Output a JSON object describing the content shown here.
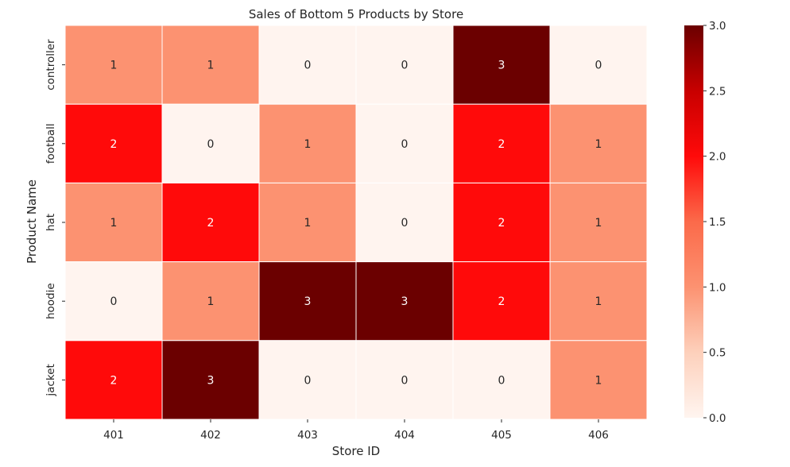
{
  "chart_data": {
    "type": "heatmap",
    "title": "Sales of Bottom 5 Products by Store",
    "xlabel": "Store ID",
    "ylabel": "Product Name",
    "x_categories": [
      "401",
      "402",
      "403",
      "404",
      "405",
      "406"
    ],
    "y_categories": [
      "controller",
      "football",
      "hat",
      "hoodie",
      "jacket"
    ],
    "values": [
      [
        1,
        1,
        0,
        0,
        3,
        0
      ],
      [
        2,
        0,
        1,
        0,
        2,
        1
      ],
      [
        1,
        2,
        1,
        0,
        2,
        1
      ],
      [
        0,
        1,
        3,
        3,
        2,
        1
      ],
      [
        2,
        3,
        0,
        0,
        0,
        1
      ]
    ],
    "colorbar": {
      "range": [
        0,
        3
      ],
      "ticks": [
        "0.0",
        "0.5",
        "1.0",
        "1.5",
        "2.0",
        "2.5",
        "3.0"
      ],
      "colormap": "Reds"
    },
    "cell_colors": {
      "0": "#fff4ef",
      "1": "#fc9271",
      "2": "#ff0a0a",
      "3": "#6b0000"
    },
    "annotation_colors": {
      "light": "#ffffff",
      "dark": "#262626"
    },
    "grid": false
  }
}
